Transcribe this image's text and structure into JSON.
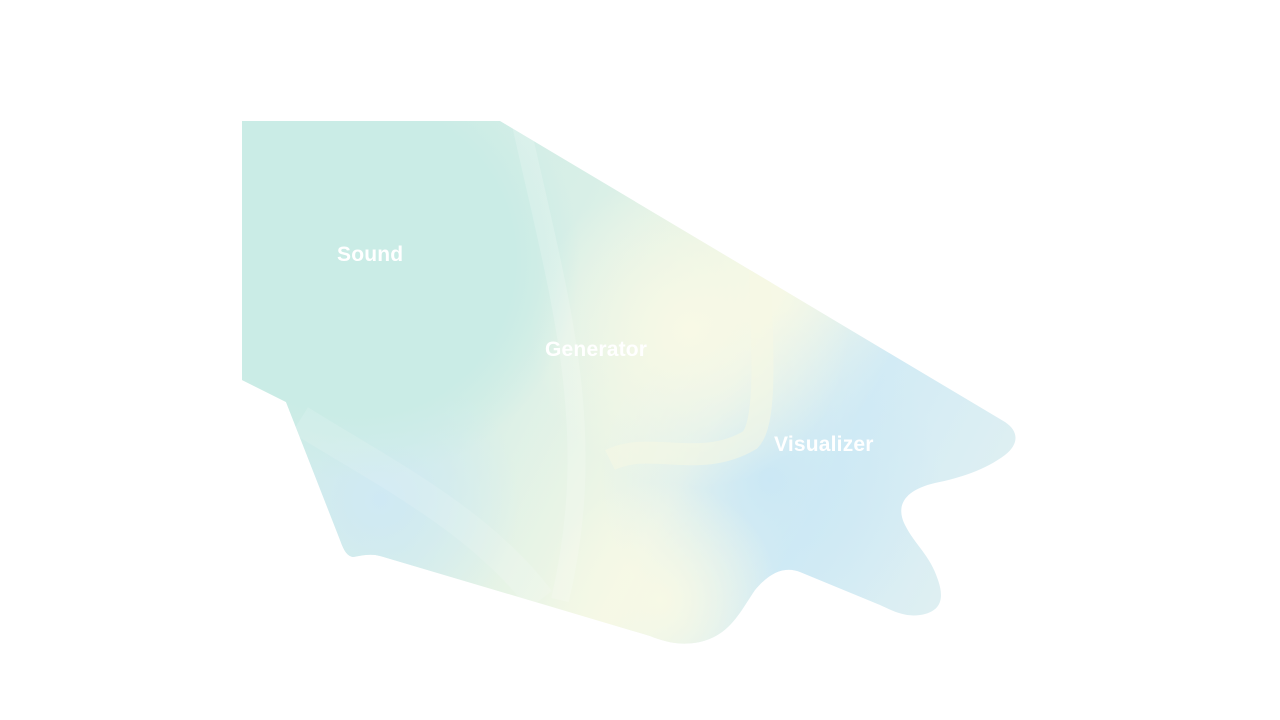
{
  "hero": {
    "words": [
      "Sound",
      "Generator",
      "Visualizer"
    ]
  },
  "colors": {
    "background": "#ffffff",
    "mint": "#cbece6",
    "cream": "#f5f8e6",
    "sky": "#cfeaf5",
    "text": "#ffffff"
  }
}
